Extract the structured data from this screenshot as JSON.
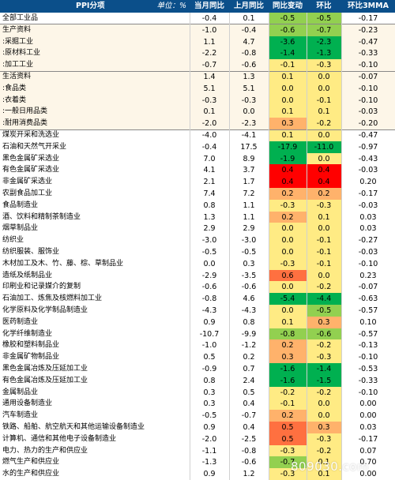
{
  "header": {
    "category": "PPI分项",
    "unit": "单位：%",
    "columns": [
      "当月同比",
      "上月同比",
      "同比变动",
      "环比",
      "环比3MMA"
    ]
  },
  "colors": {
    "header_bg": "#0b4f8a",
    "section_bg": "#fdf6e8",
    "strong_negative": "#00b050",
    "negative": "#92d050",
    "neutral": "#ffeb84",
    "mild_positive": "#ffb26b",
    "positive": "#ff7040",
    "strong_positive": "#ff0000"
  },
  "chart_data": {
    "type": "table",
    "columns": [
      "当月同比",
      "上月同比",
      "同比变动",
      "环比",
      "环比3MMA"
    ],
    "heat_columns": [
      "同比变动",
      "环比"
    ],
    "rows": [
      {
        "name": "全部工业品",
        "values": [
          "-0.4",
          "0.1",
          "-0.5",
          "-0.5",
          "-0.17"
        ]
      },
      {
        "name": "生产资料",
        "values": [
          "-1.0",
          "-0.4",
          "-0.6",
          "-0.7",
          "-0.23"
        ]
      },
      {
        "name": ":采掘工业",
        "values": [
          "1.1",
          "4.7",
          "-3.6",
          "-2.3",
          "-0.47"
        ]
      },
      {
        "name": ":原材料工业",
        "values": [
          "-2.2",
          "-0.8",
          "-1.4",
          "-1.3",
          "-0.33"
        ]
      },
      {
        "name": ":加工工业",
        "values": [
          "-0.7",
          "-0.6",
          "-0.1",
          "-0.3",
          "-0.10"
        ]
      },
      {
        "name": "生活资料",
        "values": [
          "1.4",
          "1.3",
          "0.1",
          "0.0",
          "-0.07"
        ]
      },
      {
        "name": ":食品类",
        "values": [
          "5.1",
          "5.1",
          "0.0",
          "0.0",
          "-0.10"
        ]
      },
      {
        "name": ":衣着类",
        "values": [
          "-0.3",
          "-0.3",
          "0.0",
          "-0.1",
          "-0.10"
        ]
      },
      {
        "name": ":一般日用品类",
        "values": [
          "0.1",
          "0.0",
          "0.1",
          "0.1",
          "-0.03"
        ]
      },
      {
        "name": ":耐用消费品类",
        "values": [
          "-2.0",
          "-2.3",
          "0.3",
          "-0.2",
          "-0.20"
        ]
      },
      {
        "name": "煤炭开采和洗选业",
        "values": [
          "-4.0",
          "-4.1",
          "0.1",
          "0.0",
          "-0.47"
        ]
      },
      {
        "name": "石油和天然气开采业",
        "values": [
          "-0.4",
          "17.5",
          "-17.9",
          "-11.0",
          "-0.97"
        ]
      },
      {
        "name": "黑色金属矿采选业",
        "values": [
          "7.0",
          "8.9",
          "-1.9",
          "0.0",
          "-0.43"
        ]
      },
      {
        "name": "有色金属矿采选业",
        "values": [
          "4.1",
          "3.7",
          "0.4",
          "0.4",
          "-0.03"
        ]
      },
      {
        "name": "非金属矿采选业",
        "values": [
          "2.1",
          "1.7",
          "0.4",
          "0.4",
          "0.20"
        ]
      },
      {
        "name": "农副食品加工业",
        "values": [
          "7.4",
          "7.2",
          "0.2",
          "0.2",
          "-0.17"
        ]
      },
      {
        "name": "食品制造业",
        "values": [
          "0.8",
          "1.1",
          "-0.3",
          "-0.3",
          "-0.03"
        ]
      },
      {
        "name": "酒、饮料和精制茶制造业",
        "values": [
          "1.3",
          "1.1",
          "0.2",
          "0.1",
          "0.03"
        ]
      },
      {
        "name": "烟草制品业",
        "values": [
          "2.9",
          "2.9",
          "0.0",
          "0.0",
          "0.03"
        ]
      },
      {
        "name": "纺织业",
        "values": [
          "-3.0",
          "-3.0",
          "0.0",
          "-0.1",
          "-0.27"
        ]
      },
      {
        "name": "纺织服装、服饰业",
        "values": [
          "-0.5",
          "-0.5",
          "0.0",
          "-0.1",
          "-0.03"
        ]
      },
      {
        "name": "木材加工及木、竹、藤、棕、草制品业",
        "values": [
          "0.0",
          "0.3",
          "-0.3",
          "-0.1",
          "-0.10"
        ]
      },
      {
        "name": "造纸及纸制品业",
        "values": [
          "-2.9",
          "-3.5",
          "0.6",
          "0.0",
          "0.23"
        ]
      },
      {
        "name": "印刷业和记录媒介的复制",
        "values": [
          "-0.6",
          "-0.6",
          "0.0",
          "-0.2",
          "-0.07"
        ]
      },
      {
        "name": "石油加工、炼焦及核燃料加工业",
        "values": [
          "-0.8",
          "4.6",
          "-5.4",
          "-4.4",
          "-0.63"
        ]
      },
      {
        "name": "化学原料及化学制品制造业",
        "values": [
          "-4.3",
          "-4.3",
          "0.0",
          "-0.5",
          "-0.57"
        ]
      },
      {
        "name": "医药制造业",
        "values": [
          "0.9",
          "0.8",
          "0.1",
          "0.3",
          "0.10"
        ]
      },
      {
        "name": "化学纤维制造业",
        "values": [
          "-10.7",
          "-9.9",
          "-0.8",
          "-0.6",
          "-0.57"
        ]
      },
      {
        "name": "橡胶和塑料制品业",
        "values": [
          "-1.0",
          "-1.2",
          "0.2",
          "-0.2",
          "-0.13"
        ]
      },
      {
        "name": "非金属矿物制品业",
        "values": [
          "0.5",
          "0.2",
          "0.3",
          "-0.3",
          "-0.10"
        ]
      },
      {
        "name": "黑色金属冶炼及压延加工业",
        "values": [
          "-0.9",
          "0.7",
          "-1.6",
          "-1.4",
          "-0.53"
        ]
      },
      {
        "name": "有色金属冶炼及压延加工业",
        "values": [
          "0.8",
          "2.4",
          "-1.6",
          "-1.5",
          "-0.33"
        ]
      },
      {
        "name": "金属制品业",
        "values": [
          "0.3",
          "0.5",
          "-0.2",
          "-0.2",
          "-0.10"
        ]
      },
      {
        "name": "通用设备制造业",
        "values": [
          "0.3",
          "0.4",
          "-0.1",
          "0.0",
          "0.00"
        ]
      },
      {
        "name": "汽车制造业",
        "values": [
          "-0.5",
          "-0.7",
          "0.2",
          "0.0",
          "0.00"
        ]
      },
      {
        "name": "铁路、船舶、航空航天和其他运输设备制造业",
        "values": [
          "0.9",
          "0.4",
          "0.5",
          "0.3",
          "0.03"
        ]
      },
      {
        "name": "计算机、通信和其他电子设备制造业",
        "values": [
          "-2.0",
          "-2.5",
          "0.5",
          "-0.3",
          "-0.17"
        ]
      },
      {
        "name": "电力、热力的生产和供应业",
        "values": [
          "-1.1",
          "-0.8",
          "-0.3",
          "-0.2",
          "0.07"
        ]
      },
      {
        "name": "燃气生产和供应业",
        "values": [
          "-1.3",
          "-0.6",
          "-0.7",
          "0.1",
          "0.70"
        ]
      },
      {
        "name": "水的生产和供应业",
        "values": [
          "0.9",
          "1.2",
          "-0.3",
          "0.1",
          "0.00"
        ]
      }
    ]
  },
  "watermark": "809030.com"
}
